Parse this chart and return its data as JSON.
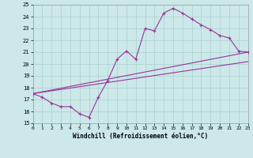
{
  "xlabel": "Windchill (Refroidissement éolien,°C)",
  "xlim": [
    0,
    23
  ],
  "ylim": [
    15,
    25
  ],
  "yticks": [
    15,
    16,
    17,
    18,
    19,
    20,
    21,
    22,
    23,
    24,
    25
  ],
  "xticks": [
    0,
    1,
    2,
    3,
    4,
    5,
    6,
    7,
    8,
    9,
    10,
    11,
    12,
    13,
    14,
    15,
    16,
    17,
    18,
    19,
    20,
    21,
    22,
    23
  ],
  "bg_color": "#cce8e8",
  "grid_color": "#aad0d0",
  "line_color": "#993399",
  "series1_x": [
    0,
    1,
    2,
    3,
    4,
    5,
    6,
    7,
    8,
    9,
    10,
    11,
    12,
    13,
    14,
    15,
    16,
    17,
    18,
    19,
    20,
    21,
    22,
    23
  ],
  "series1_y": [
    17.5,
    17.2,
    16.7,
    16.4,
    16.4,
    15.8,
    15.5,
    17.2,
    18.6,
    20.4,
    21.1,
    20.4,
    23.0,
    22.8,
    24.3,
    24.7,
    24.3,
    23.8,
    23.3,
    22.9,
    22.4,
    22.2,
    21.1,
    21.0
  ],
  "trend1_x": [
    0,
    23
  ],
  "trend1_y": [
    17.5,
    21.0
  ],
  "trend2_x": [
    0,
    23
  ],
  "trend2_y": [
    17.5,
    20.2
  ]
}
